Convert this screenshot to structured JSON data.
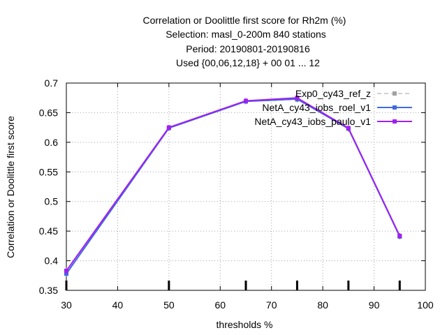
{
  "chart_data": {
    "type": "line",
    "title": [
      "Correlation or Doolittle first score  for Rh2m (%)",
      "Selection: masl_0-200m    840 stations",
      "Period: 20190801-20190816",
      "Used {00,06,12,18} + 00 01 ... 12"
    ],
    "xlabel": "thresholds %",
    "ylabel": "Correlation or Doolittle first score",
    "xlim": [
      30,
      100
    ],
    "ylim": [
      0.35,
      0.7
    ],
    "xticks": [
      30,
      40,
      50,
      60,
      70,
      80,
      90,
      100
    ],
    "yticks": [
      0.35,
      0.4,
      0.45,
      0.5,
      0.55,
      0.6,
      0.65,
      0.7
    ],
    "ytick_labels": [
      "0.35",
      "0.4",
      "0.45",
      "0.5",
      "0.55",
      "0.6",
      "0.65",
      "0.7"
    ],
    "grid": true,
    "legend_position": "top-right",
    "threshold_marks": [
      30,
      50,
      65,
      75,
      85,
      95
    ],
    "series": [
      {
        "name": "Exp0_cy43_ref_z",
        "color": "#a0a0a0",
        "dash": true,
        "x": [
          30,
          50,
          65,
          75,
          85,
          95
        ],
        "y": [
          0.379,
          0.624,
          0.669,
          0.672,
          0.623,
          0.441
        ]
      },
      {
        "name": "NetA_cy43_iobs_roel_v1",
        "color": "#4169e1",
        "dash": false,
        "x": [
          30,
          50,
          65,
          75,
          85,
          95
        ],
        "y": [
          0.378,
          0.624,
          0.669,
          0.673,
          0.623,
          0.441
        ]
      },
      {
        "name": "NetA_cy43_iobs_paulo_v1",
        "color": "#a020f0",
        "dash": false,
        "x": [
          30,
          50,
          65,
          75,
          85,
          95
        ],
        "y": [
          0.383,
          0.625,
          0.67,
          0.675,
          0.624,
          0.442
        ]
      }
    ]
  }
}
